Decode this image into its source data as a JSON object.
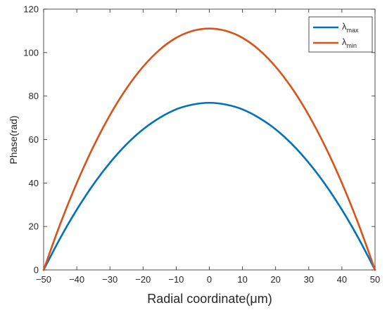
{
  "chart_data": {
    "type": "line",
    "xlabel": "Radial coordinate(μm)",
    "ylabel": "Phase(rad)",
    "xlim": [
      -50,
      50
    ],
    "ylim": [
      0,
      120
    ],
    "xticks": [
      -50,
      -40,
      -30,
      -20,
      -10,
      0,
      10,
      20,
      30,
      40,
      50
    ],
    "yticks": [
      0,
      20,
      40,
      60,
      80,
      100,
      120
    ],
    "grid": false,
    "legend_position": "top-right",
    "series": [
      {
        "name": "λ",
        "subscript": "max",
        "color": "#0072BD",
        "x": [
          -50,
          -45,
          -40,
          -35,
          -30,
          -25,
          -20,
          -15,
          -10,
          -5,
          0,
          5,
          10,
          15,
          20,
          25,
          30,
          35,
          40,
          45,
          50
        ],
        "values": [
          0,
          14.6,
          27.7,
          39.3,
          49.3,
          57.8,
          64.7,
          70.0,
          73.9,
          76.1,
          76.9,
          76.1,
          73.9,
          70.0,
          64.7,
          57.8,
          49.3,
          39.3,
          27.7,
          14.6,
          0
        ]
      },
      {
        "name": "λ",
        "subscript": "min",
        "color": "#D95319",
        "x": [
          -50,
          -45,
          -40,
          -35,
          -30,
          -25,
          -20,
          -15,
          -10,
          -5,
          0,
          5,
          10,
          15,
          20,
          25,
          30,
          35,
          40,
          45,
          50
        ],
        "values": [
          0,
          21.1,
          40.0,
          56.7,
          71.2,
          83.5,
          93.5,
          101.3,
          106.8,
          110.0,
          111.1,
          110.0,
          106.8,
          101.3,
          93.5,
          83.5,
          71.2,
          56.7,
          40.0,
          21.1,
          0
        ]
      }
    ]
  }
}
